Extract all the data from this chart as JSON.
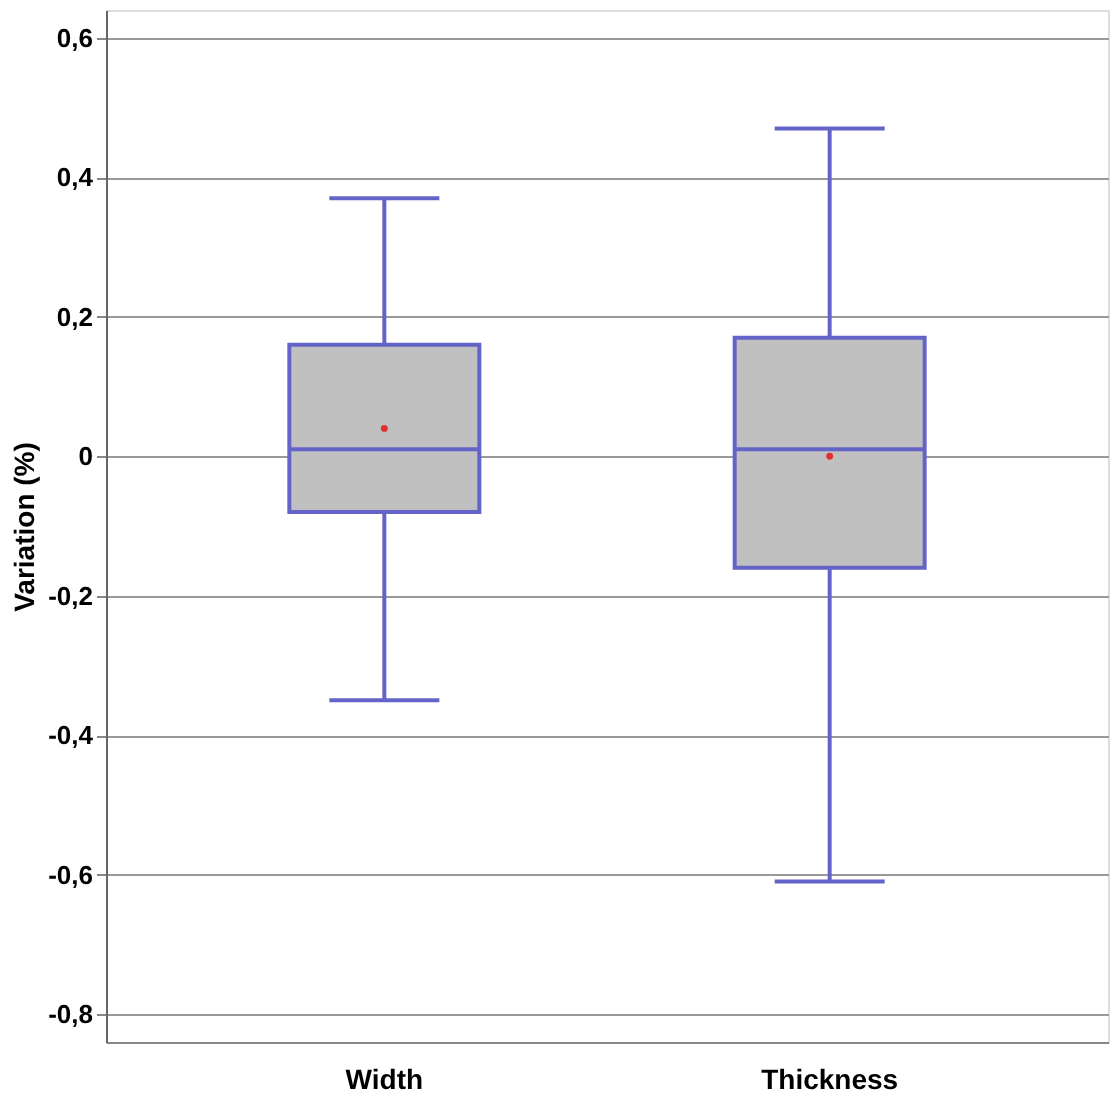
{
  "chart_data": {
    "type": "box",
    "ylabel": "Variation (%)",
    "categories": [
      "Width",
      "Thickness"
    ],
    "color": "#6464c8",
    "boxes": [
      {
        "low": -0.35,
        "q1": -0.08,
        "median": 0.01,
        "q3": 0.16,
        "high": 0.37,
        "mean": 0.04
      },
      {
        "low": -0.61,
        "q1": -0.16,
        "median": 0.01,
        "q3": 0.17,
        "high": 0.47,
        "mean": 0.0
      }
    ],
    "ylim": [
      -0.84,
      0.64
    ],
    "yticks": [
      {
        "value": -0.8,
        "label": "-0,8"
      },
      {
        "value": -0.6,
        "label": "-0,6"
      },
      {
        "value": -0.4,
        "label": "-0,4"
      },
      {
        "value": -0.2,
        "label": "-0,2"
      },
      0,
      {
        "value": 0.2,
        "label": "0,2"
      },
      {
        "value": 0.4,
        "label": "0,4"
      },
      {
        "value": 0.6,
        "label": "0,6"
      }
    ],
    "grid": "y"
  }
}
